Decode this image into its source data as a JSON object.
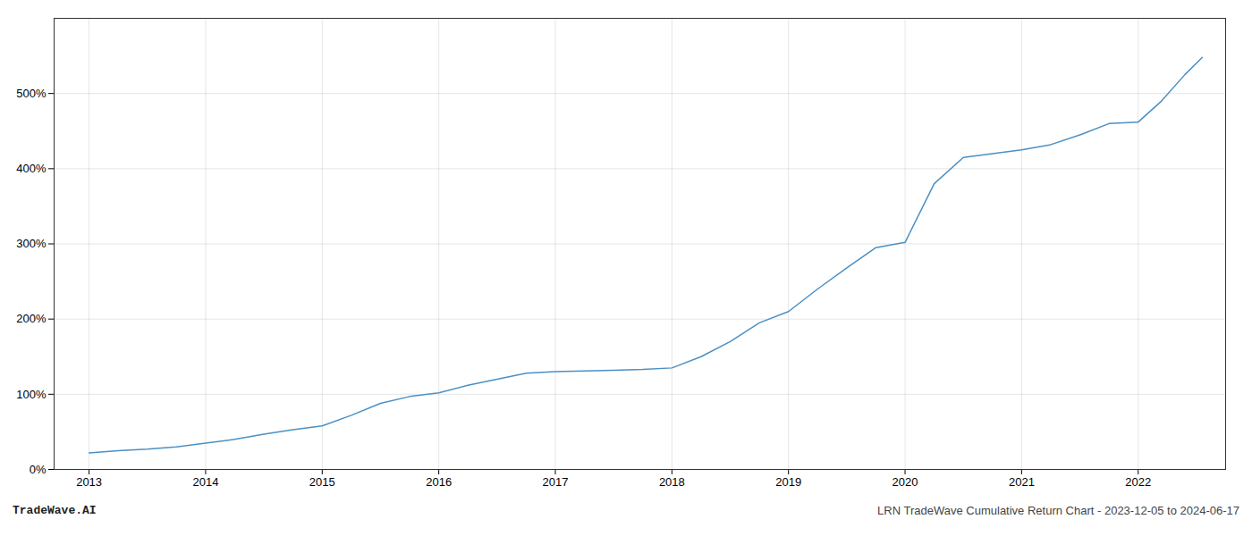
{
  "chart_data": {
    "type": "line",
    "annotations": [
      "TradeWave.AI",
      "LRN TradeWave Cumulative Return Chart - 2023-12-05 to 2024-06-17"
    ],
    "x": [
      2013.0,
      2013.25,
      2013.5,
      2013.75,
      2014.0,
      2014.25,
      2014.5,
      2014.75,
      2015.0,
      2015.25,
      2015.5,
      2015.75,
      2016.0,
      2016.25,
      2016.5,
      2016.75,
      2017.0,
      2017.25,
      2017.5,
      2017.75,
      2018.0,
      2018.25,
      2018.5,
      2018.75,
      2019.0,
      2019.25,
      2019.5,
      2019.75,
      2020.0,
      2020.25,
      2020.5,
      2020.75,
      2021.0,
      2021.25,
      2021.5,
      2021.75,
      2022.0,
      2022.2,
      2022.4,
      2022.55
    ],
    "values": [
      22,
      25,
      27,
      30,
      35,
      40,
      47,
      53,
      58,
      72,
      88,
      97,
      102,
      112,
      120,
      128,
      130,
      131,
      132,
      133,
      135,
      150,
      170,
      195,
      210,
      240,
      268,
      295,
      302,
      380,
      415,
      420,
      425,
      432,
      445,
      460,
      462,
      490,
      525,
      548
    ],
    "color": "#4a90c4",
    "xlim": [
      2012.7,
      2022.75
    ],
    "xticks": [
      2013,
      2014,
      2015,
      2016,
      2017,
      2018,
      2019,
      2020,
      2021,
      2022
    ],
    "ylim": [
      0,
      600
    ],
    "yticks": [
      {
        "value": 0,
        "label": "0%"
      },
      {
        "value": 100,
        "label": "100%"
      },
      {
        "value": 200,
        "label": "200%"
      },
      {
        "value": 300,
        "label": "300%"
      },
      {
        "value": 400,
        "label": "400%"
      },
      {
        "value": 500,
        "label": "500%"
      }
    ],
    "grid": true
  }
}
